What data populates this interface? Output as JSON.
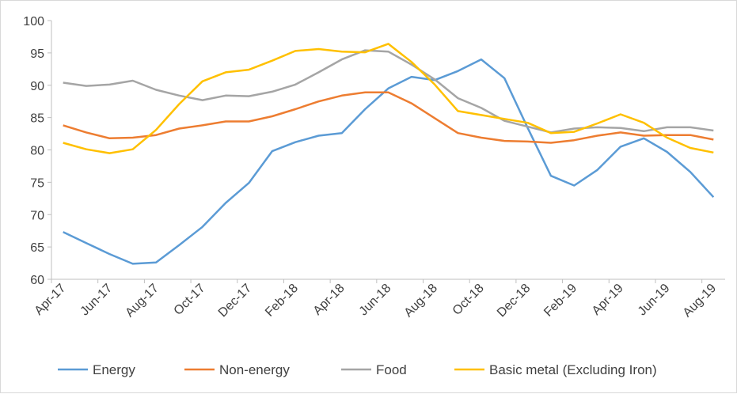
{
  "chart_data": {
    "type": "line",
    "title": "",
    "xlabel": "",
    "ylabel": "",
    "ylim": [
      60,
      100
    ],
    "yticks": [
      60,
      65,
      70,
      75,
      80,
      85,
      90,
      95,
      100
    ],
    "grid": false,
    "legend_position": "bottom",
    "categories": [
      "Apr-17",
      "May-17",
      "Jun-17",
      "Jul-17",
      "Aug-17",
      "Sep-17",
      "Oct-17",
      "Nov-17",
      "Dec-17",
      "Jan-18",
      "Feb-18",
      "Mar-18",
      "Apr-18",
      "May-18",
      "Jun-18",
      "Jul-18",
      "Aug-18",
      "Sep-18",
      "Oct-18",
      "Nov-18",
      "Dec-18",
      "Jan-19",
      "Feb-19",
      "Mar-19",
      "Apr-19",
      "May-19",
      "Jun-19",
      "Jul-19",
      "Aug-19"
    ],
    "tick_labels": [
      "Apr-17",
      "Jun-17",
      "Aug-17",
      "Oct-17",
      "Dec-17",
      "Feb-18",
      "Apr-18",
      "Jun-18",
      "Aug-18",
      "Oct-18",
      "Dec-18",
      "Feb-19",
      "Apr-19",
      "Jun-19",
      "Aug-19"
    ],
    "series": [
      {
        "name": "Energy",
        "color": "#5b9bd5",
        "values": [
          67.3,
          65.6,
          63.9,
          62.4,
          62.6,
          65.3,
          68.1,
          71.8,
          74.9,
          79.8,
          81.2,
          82.2,
          82.6,
          86.3,
          89.5,
          91.3,
          90.8,
          92.2,
          94.0,
          91.1,
          83.4,
          76.0,
          74.5,
          76.9,
          80.5,
          81.8,
          79.7,
          76.6,
          72.7
        ]
      },
      {
        "name": "Non-energy",
        "color": "#ed7d31",
        "values": [
          83.8,
          82.7,
          81.8,
          81.9,
          82.3,
          83.3,
          83.8,
          84.4,
          84.4,
          85.2,
          86.3,
          87.5,
          88.4,
          88.9,
          88.9,
          87.2,
          84.9,
          82.6,
          81.9,
          81.4,
          81.3,
          81.1,
          81.5,
          82.2,
          82.7,
          82.2,
          82.3,
          82.3,
          81.6
        ]
      },
      {
        "name": "Food",
        "color": "#a5a5a5",
        "values": [
          90.4,
          89.9,
          90.1,
          90.7,
          89.3,
          88.4,
          87.7,
          88.4,
          88.3,
          89.0,
          90.1,
          92.0,
          94.0,
          95.4,
          95.2,
          93.2,
          90.9,
          88.0,
          86.5,
          84.5,
          83.6,
          82.7,
          83.3,
          83.5,
          83.4,
          82.9,
          83.5,
          83.5,
          83.0
        ]
      },
      {
        "name": "Basic metal (Excluding Iron)",
        "color": "#ffc000",
        "values": [
          81.1,
          80.1,
          79.5,
          80.1,
          83.1,
          87.1,
          90.6,
          92.0,
          92.4,
          93.8,
          95.3,
          95.6,
          95.2,
          95.1,
          96.4,
          93.6,
          90.1,
          86.0,
          85.4,
          84.8,
          84.2,
          82.6,
          82.8,
          84.1,
          85.5,
          84.2,
          81.9,
          80.3,
          79.6
        ]
      }
    ]
  }
}
